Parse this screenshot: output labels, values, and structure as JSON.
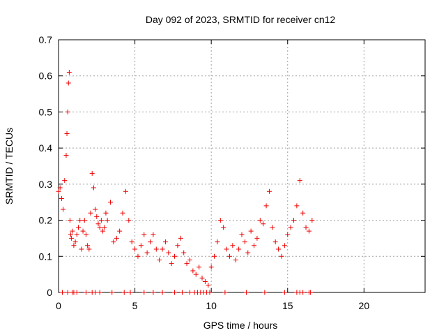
{
  "chart_data": {
    "type": "scatter",
    "title": "Day 092 of 2023, SRMTID for receiver cn12",
    "xlabel": "GPS time / hours",
    "ylabel": "SRMTID / TECUs",
    "xlim": [
      0,
      24
    ],
    "ylim": [
      0,
      0.7
    ],
    "xticks": [
      0,
      5,
      10,
      15,
      20
    ],
    "xtick_labels": [
      "0",
      "5",
      "10",
      "15",
      "20"
    ],
    "yticks": [
      0,
      0.1,
      0.2,
      0.3,
      0.4,
      0.5,
      0.6,
      0.7
    ],
    "ytick_labels": [
      "0",
      "0.1",
      "0.2",
      "0.3",
      "0.4",
      "0.5",
      "0.6",
      "0.7"
    ],
    "grid": true,
    "marker": "+",
    "series": [
      {
        "name": "SRMTID",
        "color": "#ee0000",
        "x": [
          0.0,
          0.1,
          0.2,
          0.3,
          0.4,
          0.5,
          0.55,
          0.6,
          0.65,
          0.7,
          0.75,
          0.8,
          0.85,
          0.9,
          1.0,
          1.1,
          1.2,
          1.3,
          1.4,
          1.5,
          1.6,
          1.7,
          1.8,
          1.9,
          2.0,
          2.1,
          2.2,
          2.3,
          2.4,
          2.5,
          2.6,
          2.7,
          2.8,
          2.9,
          3.0,
          3.1,
          3.2,
          3.4,
          3.6,
          3.8,
          4.0,
          4.2,
          4.4,
          4.6,
          4.8,
          5.0,
          5.2,
          5.4,
          5.6,
          5.8,
          6.0,
          6.2,
          6.4,
          6.6,
          6.8,
          7.0,
          7.2,
          7.4,
          7.6,
          7.8,
          8.0,
          8.2,
          8.4,
          8.6,
          8.8,
          9.0,
          9.2,
          9.4,
          9.6,
          9.8,
          10.0,
          10.2,
          10.4,
          10.6,
          10.8,
          11.0,
          11.2,
          11.4,
          11.6,
          11.8,
          12.0,
          12.2,
          12.4,
          12.6,
          12.8,
          13.0,
          13.2,
          13.4,
          13.6,
          13.8,
          14.0,
          14.2,
          14.4,
          14.6,
          14.8,
          15.0,
          15.2,
          15.4,
          15.6,
          15.8,
          16.0,
          16.2,
          16.4,
          16.6
        ],
        "y": [
          0.28,
          0.29,
          0.26,
          0.23,
          0.31,
          0.38,
          0.44,
          0.5,
          0.58,
          0.61,
          0.2,
          0.16,
          0.15,
          0.17,
          0.13,
          0.14,
          0.16,
          0.18,
          0.2,
          0.12,
          0.17,
          0.2,
          0.16,
          0.13,
          0.12,
          0.22,
          0.33,
          0.29,
          0.23,
          0.21,
          0.19,
          0.18,
          0.2,
          0.17,
          0.18,
          0.22,
          0.2,
          0.25,
          0.14,
          0.15,
          0.17,
          0.22,
          0.28,
          0.2,
          0.14,
          0.12,
          0.1,
          0.13,
          0.16,
          0.11,
          0.14,
          0.16,
          0.12,
          0.09,
          0.12,
          0.14,
          0.11,
          0.08,
          0.1,
          0.13,
          0.15,
          0.11,
          0.08,
          0.09,
          0.06,
          0.05,
          0.07,
          0.04,
          0.03,
          0.02,
          0.07,
          0.1,
          0.14,
          0.2,
          0.18,
          0.12,
          0.1,
          0.13,
          0.09,
          0.12,
          0.16,
          0.14,
          0.11,
          0.17,
          0.13,
          0.15,
          0.2,
          0.19,
          0.24,
          0.28,
          0.18,
          0.14,
          0.12,
          0.1,
          0.13,
          0.16,
          0.18,
          0.2,
          0.24,
          0.31,
          0.22,
          0.18,
          0.17,
          0.2
        ],
        "zero_x": [
          0.25,
          0.6,
          0.9,
          1.0,
          1.2,
          1.8,
          2.2,
          2.4,
          2.7,
          3.5,
          4.3,
          4.7,
          5.6,
          6.2,
          6.8,
          7.6,
          8.1,
          8.6,
          8.9,
          9.1,
          9.3,
          9.5,
          9.7,
          9.9,
          10.9,
          12.3,
          13.5,
          14.8,
          15.6,
          15.8,
          16.0,
          16.4,
          16.5
        ]
      }
    ]
  }
}
